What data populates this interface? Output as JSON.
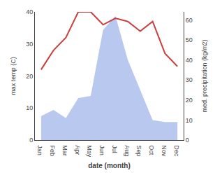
{
  "chart_data": {
    "type": "line",
    "categories": [
      "Jan",
      "Feb",
      "Mar",
      "Apr",
      "May",
      "Jun",
      "Jul",
      "Aug",
      "Sep",
      "Oct",
      "Nov",
      "Dec"
    ],
    "xlabel": "date (month)",
    "ylabel": "max temp (C)",
    "y2label": "med. precipitation (kg/m2)",
    "series": [
      {
        "type": "area",
        "axis": "y2",
        "color": "#b8c8ee",
        "values": [
          12,
          15,
          11,
          21,
          22,
          55,
          62,
          40,
          25,
          10,
          9,
          9
        ]
      },
      {
        "type": "line",
        "color": "#c94040",
        "values": [
          22,
          28,
          32,
          40,
          40,
          36,
          38,
          37,
          34,
          37,
          27,
          23
        ]
      }
    ],
    "ylim": [
      0,
      40
    ],
    "yticks": [
      0,
      10,
      20,
      30,
      40
    ],
    "y2lim": [
      0,
      64
    ],
    "y2ticks": [
      0,
      10,
      20,
      30,
      40,
      50,
      60
    ],
    "grid": false
  }
}
